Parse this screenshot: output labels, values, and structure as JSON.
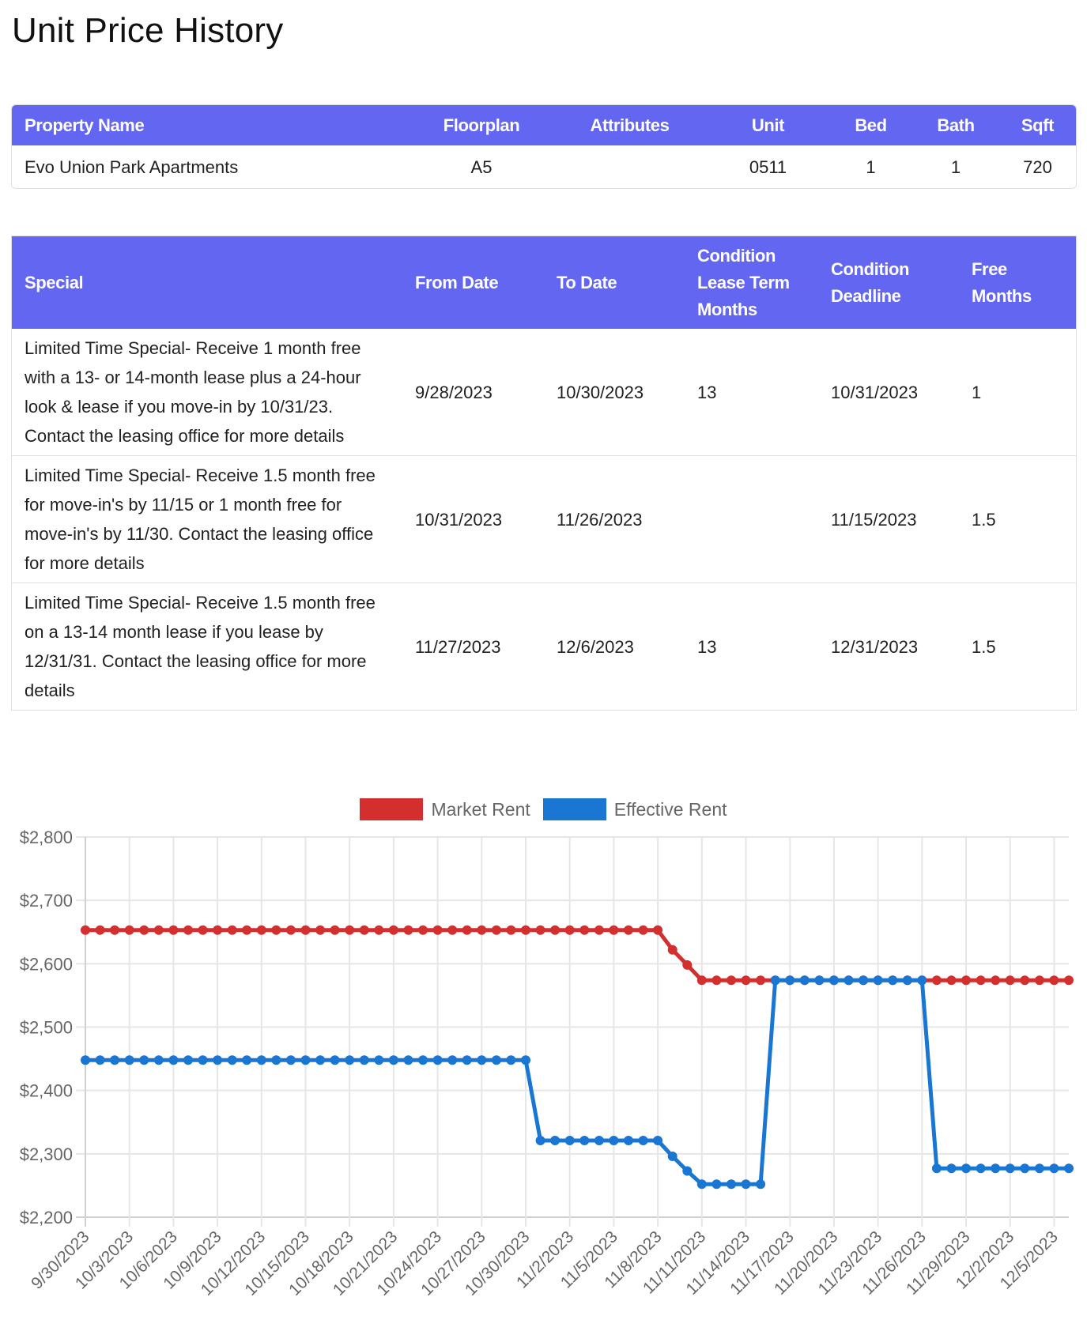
{
  "page": {
    "title": "Unit Price History"
  },
  "property_table": {
    "headers": [
      "Property Name",
      "Floorplan",
      "Attributes",
      "Unit",
      "Bed",
      "Bath",
      "Sqft"
    ],
    "rows": [
      [
        "Evo Union Park Apartments",
        "A5",
        "",
        "0511",
        "1",
        "1",
        "720"
      ]
    ]
  },
  "specials_table": {
    "headers": [
      "Special",
      "From Date",
      "To Date",
      "Condition Lease Term Months",
      "Condition Deadline",
      "Free Months"
    ],
    "rows": [
      [
        "Limited Time Special- Receive 1 month free with a 13- or 14-month lease plus a 24-hour look & lease if you move-in by 10/31/23. Contact the leasing office for more details",
        "9/28/2023",
        "10/30/2023",
        "13",
        "10/31/2023",
        "1"
      ],
      [
        "Limited Time Special- Receive 1.5 month free for move-in's by 11/15 or 1 month free for move-in's by 11/30. Contact the leasing office for more details",
        "10/31/2023",
        "11/26/2023",
        "",
        "11/15/2023",
        "1.5"
      ],
      [
        "Limited Time Special- Receive 1.5 month free on a 13-14 month lease if you lease by 12/31/31. Contact the leasing office for more details",
        "11/27/2023",
        "12/6/2023",
        "13",
        "12/31/2023",
        "1.5"
      ]
    ]
  },
  "colors": {
    "header": "#6366F1",
    "market_rent": "#D32F2F",
    "effective_rent": "#1976D2",
    "grid": "#E5E5E5",
    "axis_text": "#666666"
  },
  "chart_data": {
    "type": "line",
    "title": "",
    "xlabel": "",
    "ylabel": "",
    "ylim": [
      2200,
      2800
    ],
    "yticks": [
      "$2,200",
      "$2,300",
      "$2,400",
      "$2,500",
      "$2,600",
      "$2,700",
      "$2,800"
    ],
    "ytick_values": [
      2200,
      2300,
      2400,
      2500,
      2600,
      2700,
      2800
    ],
    "grid": true,
    "legend_position": "top",
    "x_tick_labels": [
      "9/30/2023",
      "10/3/2023",
      "10/6/2023",
      "10/9/2023",
      "10/12/2023",
      "10/15/2023",
      "10/18/2023",
      "10/21/2023",
      "10/24/2023",
      "10/27/2023",
      "10/30/2023",
      "11/2/2023",
      "11/5/2023",
      "11/8/2023",
      "11/11/2023",
      "11/14/2023",
      "11/17/2023",
      "11/20/2023",
      "11/23/2023",
      "11/26/2023",
      "11/29/2023",
      "12/2/2023",
      "12/5/2023"
    ],
    "x": [
      "9/30/2023",
      "10/1/2023",
      "10/2/2023",
      "10/3/2023",
      "10/4/2023",
      "10/5/2023",
      "10/6/2023",
      "10/7/2023",
      "10/8/2023",
      "10/9/2023",
      "10/10/2023",
      "10/11/2023",
      "10/12/2023",
      "10/13/2023",
      "10/14/2023",
      "10/15/2023",
      "10/16/2023",
      "10/17/2023",
      "10/18/2023",
      "10/19/2023",
      "10/20/2023",
      "10/21/2023",
      "10/22/2023",
      "10/23/2023",
      "10/24/2023",
      "10/25/2023",
      "10/26/2023",
      "10/27/2023",
      "10/28/2023",
      "10/29/2023",
      "10/30/2023",
      "10/31/2023",
      "11/1/2023",
      "11/2/2023",
      "11/3/2023",
      "11/4/2023",
      "11/5/2023",
      "11/6/2023",
      "11/7/2023",
      "11/8/2023",
      "11/9/2023",
      "11/10/2023",
      "11/11/2023",
      "11/12/2023",
      "11/13/2023",
      "11/14/2023",
      "11/15/2023",
      "11/16/2023",
      "11/17/2023",
      "11/18/2023",
      "11/19/2023",
      "11/20/2023",
      "11/21/2023",
      "11/22/2023",
      "11/23/2023",
      "11/24/2023",
      "11/25/2023",
      "11/26/2023",
      "11/27/2023",
      "11/28/2023",
      "11/29/2023",
      "11/30/2023",
      "12/1/2023",
      "12/2/2023",
      "12/3/2023",
      "12/4/2023",
      "12/5/2023",
      "12/6/2023"
    ],
    "series": [
      {
        "name": "Market Rent",
        "color": "#D32F2F",
        "values": [
          2653,
          2653,
          2653,
          2653,
          2653,
          2653,
          2653,
          2653,
          2653,
          2653,
          2653,
          2653,
          2653,
          2653,
          2653,
          2653,
          2653,
          2653,
          2653,
          2653,
          2653,
          2653,
          2653,
          2653,
          2653,
          2653,
          2653,
          2653,
          2653,
          2653,
          2653,
          2653,
          2653,
          2653,
          2653,
          2653,
          2653,
          2653,
          2653,
          2653,
          2622,
          2598,
          2574,
          2574,
          2574,
          2574,
          2574,
          2574,
          2574,
          2574,
          2574,
          2574,
          2574,
          2574,
          2574,
          2574,
          2574,
          2574,
          2574,
          2574,
          2574,
          2574,
          2574,
          2574,
          2574,
          2574,
          2574,
          2574
        ]
      },
      {
        "name": "Effective Rent",
        "color": "#1976D2",
        "values": [
          2448,
          2448,
          2448,
          2448,
          2448,
          2448,
          2448,
          2448,
          2448,
          2448,
          2448,
          2448,
          2448,
          2448,
          2448,
          2448,
          2448,
          2448,
          2448,
          2448,
          2448,
          2448,
          2448,
          2448,
          2448,
          2448,
          2448,
          2448,
          2448,
          2448,
          2448,
          2321,
          2321,
          2321,
          2321,
          2321,
          2321,
          2321,
          2321,
          2321,
          2296,
          2273,
          2252,
          2252,
          2252,
          2252,
          2252,
          2574,
          2574,
          2574,
          2574,
          2574,
          2574,
          2574,
          2574,
          2574,
          2574,
          2574,
          2277,
          2277,
          2277,
          2277,
          2277,
          2277,
          2277,
          2277,
          2277,
          2277
        ]
      }
    ]
  }
}
